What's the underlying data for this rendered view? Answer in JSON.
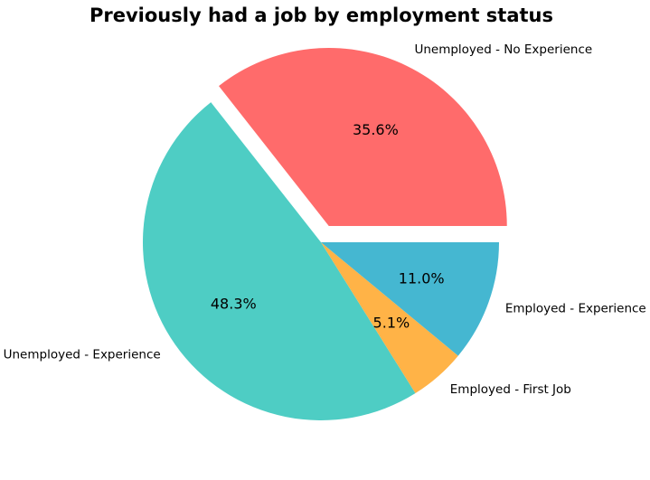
{
  "chart_data": {
    "type": "pie",
    "title": "Previously had a job by employment status",
    "slices": [
      {
        "label": "Unemployed - No Experience",
        "value": 35.6,
        "pct_label": "35.6%",
        "color": "#FF6B6B",
        "exploded": true
      },
      {
        "label": "Unemployed - Experience",
        "value": 48.3,
        "pct_label": "48.3%",
        "color": "#4ECDC4",
        "exploded": false
      },
      {
        "label": "Employed - First Job",
        "value": 5.1,
        "pct_label": "5.1%",
        "color": "#FFB347",
        "exploded": false
      },
      {
        "label": "Employed - Experience",
        "value": 11.0,
        "pct_label": "11.0%",
        "color": "#45B7D1",
        "exploded": false
      }
    ],
    "legend": "none"
  }
}
